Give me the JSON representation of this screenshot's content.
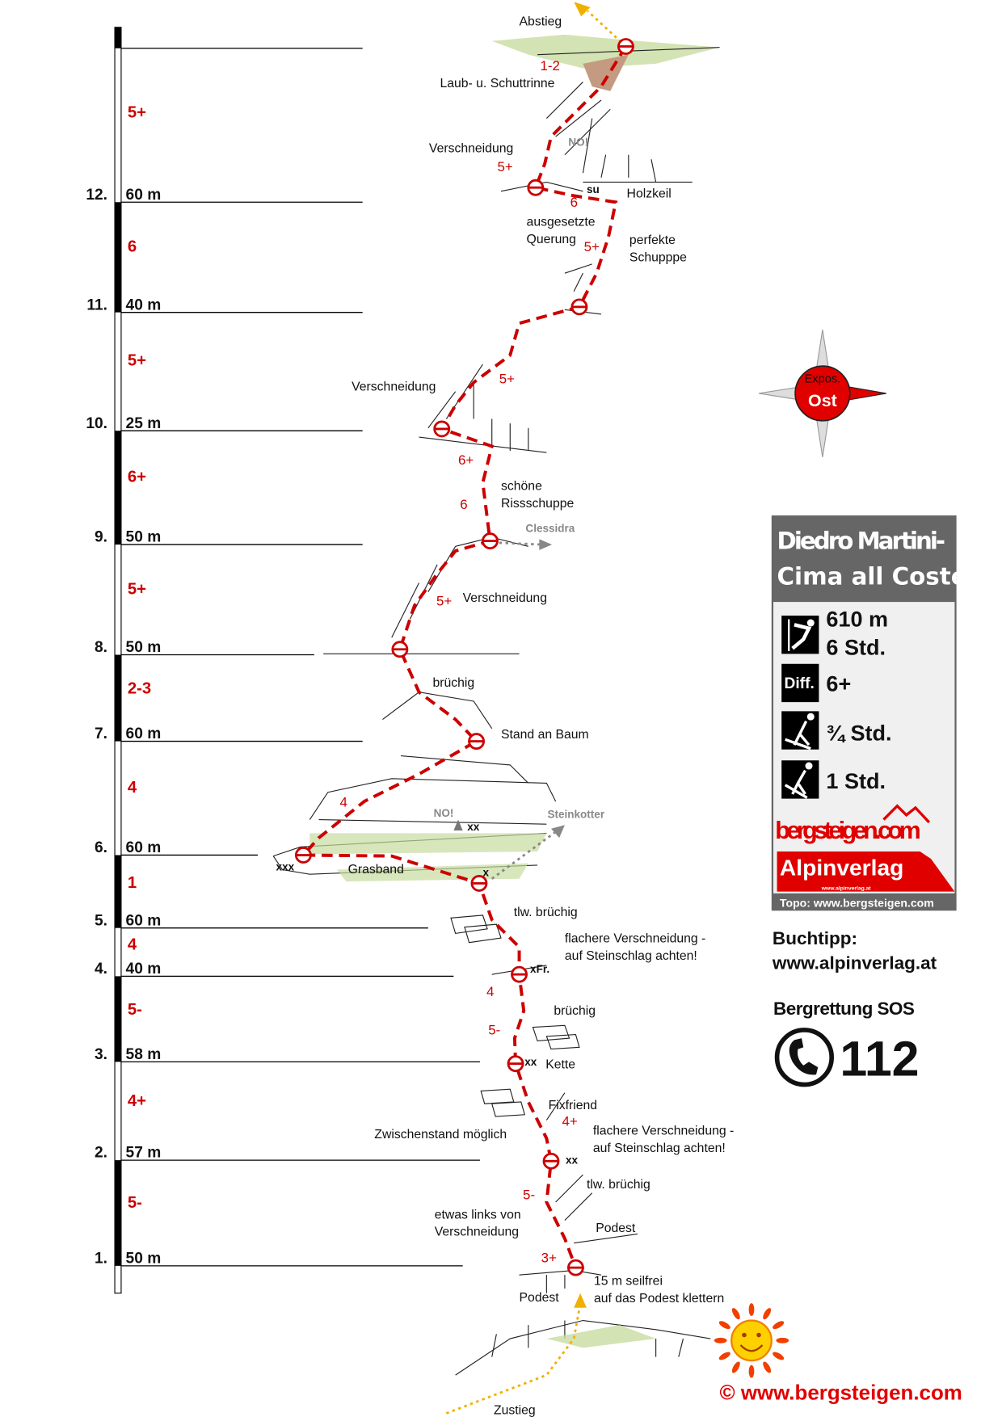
{
  "pitches": [
    {
      "number": "1.",
      "grade": "5-",
      "length": "50 m"
    },
    {
      "number": "2.",
      "grade": "4+",
      "length": "57 m"
    },
    {
      "number": "3.",
      "grade": "5-",
      "length": "58 m"
    },
    {
      "number": "4.",
      "grade": "4",
      "length": "40 m"
    },
    {
      "number": "5.",
      "grade": "1",
      "length": "60 m"
    },
    {
      "number": "6.",
      "grade": "4",
      "length": "60 m"
    },
    {
      "number": "7.",
      "grade": "2-3",
      "length": "60 m"
    },
    {
      "number": "8.",
      "grade": "5+",
      "length": "50 m"
    },
    {
      "number": "9.",
      "grade": "6+",
      "length": "50 m"
    },
    {
      "number": "10.",
      "grade": "5+",
      "length": "25 m"
    },
    {
      "number": "11.",
      "grade": "6",
      "length": "40 m"
    },
    {
      "number": "12.",
      "grade": "5+",
      "length": "60 m"
    }
  ],
  "annotations": [
    "Abstieg",
    "Laub- u. Schuttrinne",
    "Verschneidung",
    "Holzkeil",
    "ausgesetzte",
    "Querung",
    "perfekte",
    "Schupppe",
    "Verschneidung",
    "schöne",
    "Rissschuppe",
    "Verschneidung",
    "brüchig",
    "Stand an Baum",
    "Grasband",
    "tlw. brüchig",
    "flachere Verschneidung -",
    "auf Steinschlag achten!",
    "brüchig",
    "Kette",
    "Fixfriend",
    "Zwischenstand möglich",
    "flachere Verschneidung -",
    "auf Steinschlag achten!",
    "tlw. brüchig",
    "etwas links von",
    "Verschneidung",
    "Podest",
    "15 m seilfrei",
    "auf das Podest klettern",
    "Podest",
    "Zustieg"
  ],
  "grey_labels": [
    "Clessidra",
    "Steinkotter",
    "NO!",
    "NO!"
  ],
  "route_grades": [
    "1-2",
    "5+",
    "6",
    "5+",
    "5+",
    "6+",
    "6",
    "5+",
    "4",
    "4",
    "5-",
    "4+",
    "5-",
    "3+"
  ],
  "protection_marks": [
    "xx",
    "xxx",
    "x",
    "xFr.",
    "xx",
    "xx",
    "su"
  ],
  "compass": {
    "line1": "Expos.",
    "line2": "Ost",
    "icon": "compass-rose-icon"
  },
  "info_box": {
    "title_line1": "Diedro Martini-",
    "title_line2": "Cima all Coste",
    "climb_length": "610 m",
    "climb_time": "6 Std.",
    "difficulty_label": "Diff.",
    "difficulty": "6+",
    "approach_time": "¾ Std.",
    "descent_time": "1 Std.",
    "logo1": "bergsteigen.com",
    "logo2": "Alpinverlag",
    "logo2_sub": "www.alpinverlag.at",
    "topo_credit": "Topo: www.bergsteigen.com"
  },
  "book_tip": {
    "label": "Buchtipp:",
    "url": "www.alpinverlag.at"
  },
  "sos": {
    "label": "Bergrettung SOS",
    "number": "112"
  },
  "footer": {
    "copyright": "©  www.bergsteigen.com"
  },
  "colors": {
    "route": "#cc0000",
    "grass": "#c8dca0",
    "box_header": "#666666",
    "box_bg": "#f0f0f0",
    "compass_red": "#e00000"
  }
}
